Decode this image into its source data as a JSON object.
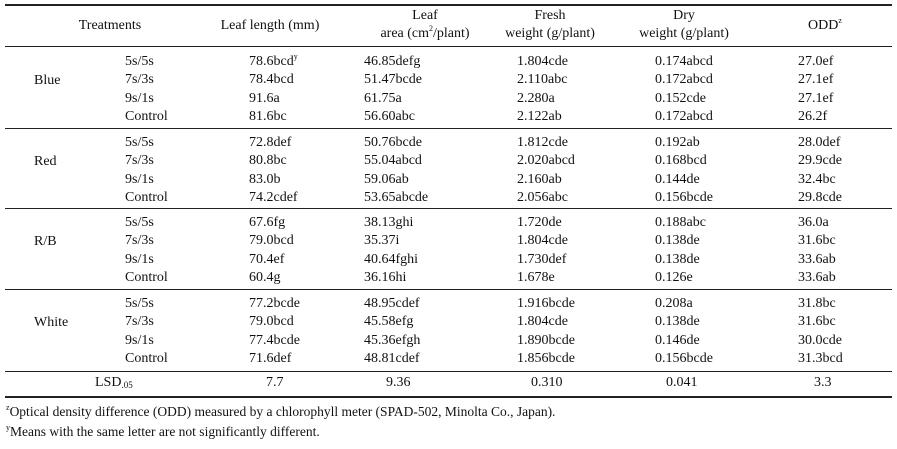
{
  "headers": {
    "treatments": "Treatments",
    "leaf_length": "Leaf length (mm)",
    "leaf_area_1": "Leaf",
    "leaf_area_2a": "area (cm",
    "leaf_area_2sup": "2",
    "leaf_area_2b": "/plant)",
    "fresh_1": "Fresh",
    "fresh_2": "weight (g/plant)",
    "dry_1": "Dry",
    "dry_2": "weight (g/plant)",
    "odd": "ODD",
    "odd_sup": "z"
  },
  "groups": [
    {
      "name": "Blue",
      "rows": [
        {
          "t": "5s/5s",
          "ll": "78.6bcd",
          "ll_sup": "y",
          "la": "46.85defg",
          "fw": "1.804cde",
          "dw": "0.174abcd",
          "odd": "27.0ef"
        },
        {
          "t": "7s/3s",
          "ll": "78.4bcd",
          "la": "51.47bcde",
          "fw": "2.110abc",
          "dw": "0.172abcd",
          "odd": "27.1ef"
        },
        {
          "t": "9s/1s",
          "ll": "91.6a",
          "la": "61.75a",
          "fw": "2.280a",
          "dw": "0.152cde",
          "odd": "27.1ef"
        },
        {
          "t": "Control",
          "ll": "81.6bc",
          "la": "56.60abc",
          "fw": "2.122ab",
          "dw": "0.172abcd",
          "odd": "26.2f"
        }
      ]
    },
    {
      "name": "Red",
      "rows": [
        {
          "t": "5s/5s",
          "ll": "72.8def",
          "la": "50.76bcde",
          "fw": "1.812cde",
          "dw": "0.192ab",
          "odd": "28.0def"
        },
        {
          "t": "7s/3s",
          "ll": "80.8bc",
          "la": "55.04abcd",
          "fw": "2.020abcd",
          "dw": "0.168bcd",
          "odd": "29.9cde"
        },
        {
          "t": "9s/1s",
          "ll": "83.0b",
          "la": "59.06ab",
          "fw": "2.160ab",
          "dw": "0.144de",
          "odd": "32.4bc"
        },
        {
          "t": "Control",
          "ll": "74.2cdef",
          "la": "53.65abcde",
          "fw": "2.056abc",
          "dw": "0.156bcde",
          "odd": "29.8cde"
        }
      ]
    },
    {
      "name": "R/B",
      "rows": [
        {
          "t": "5s/5s",
          "ll": "67.6fg",
          "la": "38.13ghi",
          "fw": "1.720de",
          "dw": "0.188abc",
          "odd": "36.0a"
        },
        {
          "t": "7s/3s",
          "ll": "79.0bcd",
          "la": "35.37i",
          "fw": "1.804cde",
          "dw": "0.138de",
          "odd": "31.6bc"
        },
        {
          "t": "9s/1s",
          "ll": "70.4ef",
          "la": "40.64fghi",
          "fw": "1.730def",
          "dw": "0.138de",
          "odd": "33.6ab"
        },
        {
          "t": "Control",
          "ll": "60.4g",
          "la": "36.16hi",
          "fw": "1.678e",
          "dw": "0.126e",
          "odd": "33.6ab"
        }
      ]
    },
    {
      "name": "White",
      "rows": [
        {
          "t": "5s/5s",
          "ll": "77.2bcde",
          "la": "48.95cdef",
          "fw": "1.916bcde",
          "dw": "0.208a",
          "odd": "31.8bc"
        },
        {
          "t": "7s/3s",
          "ll": "79.0bcd",
          "la": "45.58efg",
          "fw": "1.804cde",
          "dw": "0.138de",
          "odd": "31.6bc"
        },
        {
          "t": "9s/1s",
          "ll": "77.4bcde",
          "la": "45.36efgh",
          "fw": "1.890bcde",
          "dw": "0.146de",
          "odd": "30.0cde"
        },
        {
          "t": "Control",
          "ll": "71.6def",
          "la": "48.81cdef",
          "fw": "1.856bcde",
          "dw": "0.156bcde",
          "odd": "31.3bcd"
        }
      ]
    }
  ],
  "lsd": {
    "label": "LSD",
    "label_sub": ".05",
    "ll": "7.7",
    "la": "9.36",
    "fw": "0.310",
    "dw": "0.041",
    "odd": "3.3"
  },
  "footnotes": {
    "z_mark": "z",
    "z_text": "Optical density difference (ODD) measured by a chlorophyll meter (SPAD-502, Minolta Co., Japan).",
    "y_mark": "y",
    "y_text": "Means with the same letter are not significantly different."
  }
}
